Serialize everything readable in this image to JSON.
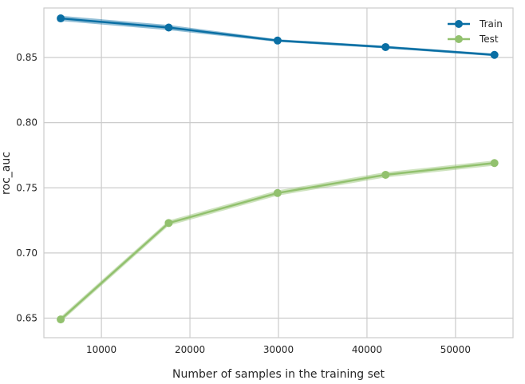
{
  "chart_data": {
    "type": "line",
    "xlabel": "Number of samples in the training set",
    "ylabel": "roc_auc",
    "xlim": [
      3500,
      56500
    ],
    "ylim": [
      0.635,
      0.888
    ],
    "xticks": [
      10000,
      20000,
      30000,
      40000,
      50000
    ],
    "xtick_labels": [
      "10000",
      "20000",
      "30000",
      "40000",
      "50000"
    ],
    "yticks": [
      0.65,
      0.7,
      0.75,
      0.8,
      0.85
    ],
    "ytick_labels": [
      "0.65",
      "0.70",
      "0.75",
      "0.80",
      "0.85"
    ],
    "grid": true,
    "legend_position": "top-right",
    "x": [
      5400,
      17600,
      29900,
      42100,
      54400
    ],
    "series": [
      {
        "name": "Train",
        "color": "#0a6fa4",
        "values": [
          0.88,
          0.873,
          0.863,
          0.858,
          0.852
        ],
        "band_upper": [
          0.882,
          0.875,
          0.864,
          0.859,
          0.853
        ],
        "band_lower": [
          0.878,
          0.871,
          0.862,
          0.857,
          0.851
        ]
      },
      {
        "name": "Test",
        "color": "#92c16e",
        "values": [
          0.649,
          0.723,
          0.746,
          0.76,
          0.769
        ],
        "band_upper": [
          0.651,
          0.725,
          0.748,
          0.762,
          0.771
        ],
        "band_lower": [
          0.647,
          0.721,
          0.744,
          0.758,
          0.767
        ]
      }
    ]
  }
}
